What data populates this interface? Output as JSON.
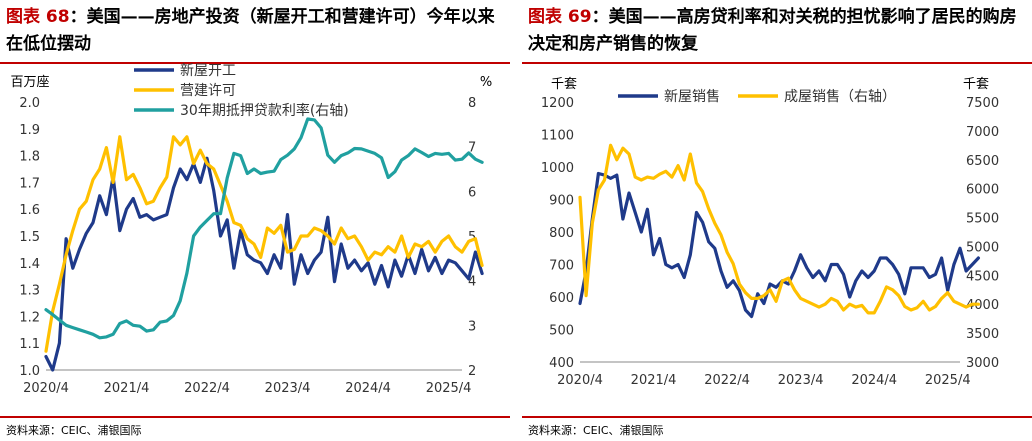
{
  "colors": {
    "navy": "#1f3a8a",
    "gold": "#ffc000",
    "teal": "#20a0a0",
    "red": "#c00000"
  },
  "panels": [
    {
      "fig_label": "图表 68",
      "title_text": "：美国——房地产投资（新屋开工和营建许可）今年以来在低位摆动",
      "source": "资料来源：CEIC、浦银国际"
    },
    {
      "fig_label": "图表 69",
      "title_text": "：美国——高房贷利率和对关税的担忧影响了居民的购房决定和房产销售的恢复",
      "source": "资料来源：CEIC、浦银国际"
    }
  ],
  "chart_data": [
    {
      "type": "line",
      "x_ticks": [
        "2020/4",
        "2021/4",
        "2022/4",
        "2023/4",
        "2024/4",
        "2025/4"
      ],
      "x_range": [
        "2020/4",
        "2025/6"
      ],
      "left_unit": "百万座",
      "right_unit": "%",
      "ylim_left": [
        1.0,
        2.0
      ],
      "yticks_left": [
        "1.0",
        "1.1",
        "1.2",
        "1.3",
        "1.4",
        "1.5",
        "1.6",
        "1.7",
        "1.8",
        "1.9",
        "2.0"
      ],
      "ylim_right": [
        2,
        8
      ],
      "yticks_right": [
        "2",
        "3",
        "4",
        "5",
        "6",
        "7",
        "8"
      ],
      "legend": [
        {
          "name": "新屋开工",
          "color": "#1f3a8a"
        },
        {
          "name": "营建许可",
          "color": "#ffc000"
        },
        {
          "name": "30年期抵押贷款利率(右轴)",
          "color": "#20a0a0"
        }
      ],
      "series": [
        {
          "name": "新屋开工",
          "axis": "left",
          "color": "#1f3a8a",
          "values": [
            1.05,
            1.0,
            1.1,
            1.49,
            1.38,
            1.45,
            1.51,
            1.55,
            1.65,
            1.58,
            1.72,
            1.52,
            1.6,
            1.64,
            1.57,
            1.58,
            1.56,
            1.57,
            1.58,
            1.68,
            1.75,
            1.71,
            1.77,
            1.7,
            1.79,
            1.67,
            1.5,
            1.56,
            1.38,
            1.52,
            1.43,
            1.41,
            1.4,
            1.36,
            1.43,
            1.38,
            1.58,
            1.32,
            1.43,
            1.36,
            1.41,
            1.44,
            1.57,
            1.33,
            1.47,
            1.38,
            1.41,
            1.37,
            1.4,
            1.32,
            1.39,
            1.31,
            1.41,
            1.35,
            1.43,
            1.36,
            1.45,
            1.37,
            1.42,
            1.36,
            1.41,
            1.4,
            1.37,
            1.34,
            1.44,
            1.36
          ]
        },
        {
          "name": "营建许可",
          "axis": "left",
          "color": "#ffc000",
          "values": [
            1.07,
            1.22,
            1.32,
            1.43,
            1.52,
            1.6,
            1.63,
            1.71,
            1.75,
            1.83,
            1.7,
            1.87,
            1.71,
            1.73,
            1.68,
            1.62,
            1.63,
            1.68,
            1.72,
            1.87,
            1.84,
            1.87,
            1.77,
            1.82,
            1.77,
            1.75,
            1.69,
            1.63,
            1.55,
            1.54,
            1.49,
            1.47,
            1.42,
            1.53,
            1.51,
            1.54,
            1.44,
            1.45,
            1.5,
            1.5,
            1.53,
            1.52,
            1.5,
            1.47,
            1.53,
            1.49,
            1.5,
            1.46,
            1.41,
            1.44,
            1.43,
            1.46,
            1.44,
            1.5,
            1.42,
            1.47,
            1.46,
            1.48,
            1.44,
            1.48,
            1.5,
            1.46,
            1.44,
            1.48,
            1.49,
            1.39
          ]
        },
        {
          "name": "30年期抵押贷款利率(右轴)",
          "axis": "right",
          "color": "#20a0a0",
          "values": [
            3.35,
            3.24,
            3.12,
            3.0,
            2.95,
            2.9,
            2.85,
            2.8,
            2.72,
            2.74,
            2.8,
            3.04,
            3.1,
            3.0,
            2.98,
            2.87,
            2.9,
            3.07,
            3.1,
            3.22,
            3.55,
            4.17,
            5.0,
            5.2,
            5.35,
            5.5,
            5.5,
            6.3,
            6.85,
            6.8,
            6.4,
            6.5,
            6.4,
            6.43,
            6.45,
            6.71,
            6.81,
            6.95,
            7.2,
            7.62,
            7.6,
            7.42,
            6.81,
            6.65,
            6.8,
            6.86,
            6.96,
            6.95,
            6.9,
            6.85,
            6.75,
            6.31,
            6.44,
            6.7,
            6.8,
            6.95,
            6.87,
            6.78,
            6.85,
            6.83,
            6.85,
            6.7,
            6.72,
            6.86,
            6.72,
            6.65
          ]
        }
      ]
    },
    {
      "type": "line",
      "x_ticks": [
        "2020/4",
        "2021/4",
        "2022/4",
        "2023/4",
        "2024/4",
        "2025/4"
      ],
      "x_range": [
        "2020/4",
        "2025/6"
      ],
      "left_unit": "千套",
      "right_unit": "千套",
      "ylim_left": [
        400,
        1200
      ],
      "yticks_left": [
        "400",
        "500",
        "600",
        "700",
        "800",
        "900",
        "1000",
        "1100",
        "1200"
      ],
      "ylim_right": [
        3000,
        7500
      ],
      "yticks_right": [
        "3000",
        "3500",
        "4000",
        "4500",
        "5000",
        "5500",
        "6000",
        "6500",
        "7000",
        "7500"
      ],
      "legend": [
        {
          "name": "新屋销售",
          "color": "#1f3a8a"
        },
        {
          "name": "成屋销售（右轴）",
          "color": "#ffc000"
        }
      ],
      "series": [
        {
          "name": "新屋销售",
          "axis": "left",
          "color": "#1f3a8a",
          "values": [
            580,
            680,
            840,
            980,
            975,
            965,
            975,
            840,
            920,
            860,
            800,
            870,
            730,
            780,
            700,
            690,
            700,
            660,
            730,
            860,
            830,
            770,
            750,
            680,
            630,
            650,
            620,
            560,
            540,
            610,
            580,
            640,
            630,
            650,
            640,
            680,
            730,
            690,
            660,
            680,
            650,
            700,
            700,
            670,
            600,
            650,
            680,
            660,
            680,
            720,
            720,
            700,
            670,
            610,
            690,
            690,
            690,
            660,
            670,
            720,
            620,
            700,
            750,
            680,
            700,
            720
          ]
        },
        {
          "name": "成屋销售（右轴）",
          "axis": "right",
          "color": "#ffc000",
          "values": [
            5850,
            4150,
            5400,
            5980,
            6150,
            6750,
            6500,
            6700,
            6600,
            6200,
            6150,
            6200,
            6180,
            6250,
            6300,
            6200,
            6400,
            6150,
            6600,
            6100,
            5950,
            5650,
            5400,
            5200,
            4900,
            4700,
            4350,
            4200,
            4100,
            4100,
            4150,
            4250,
            4050,
            4400,
            4450,
            4250,
            4100,
            4050,
            4000,
            3950,
            4000,
            4100,
            4050,
            3900,
            4000,
            3950,
            3980,
            3850,
            3850,
            4050,
            4300,
            4250,
            4150,
            3960,
            3900,
            3940,
            4050,
            3900,
            3960,
            4100,
            4200,
            4050,
            4000,
            3950,
            4000,
            4000
          ]
        }
      ]
    }
  ]
}
